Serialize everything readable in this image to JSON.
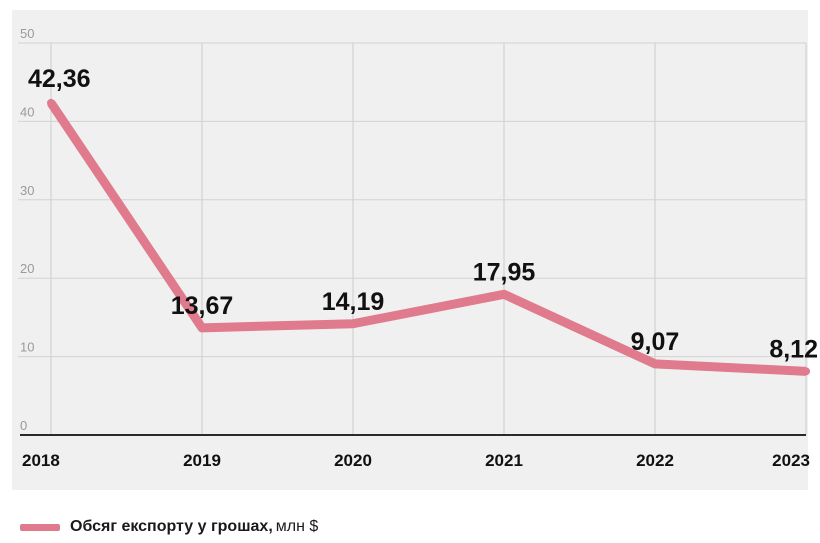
{
  "chart_data": {
    "type": "line",
    "x": [
      "2018",
      "2019",
      "2020",
      "2021",
      "2022",
      "2023"
    ],
    "series": [
      {
        "name": "Обсяг експорту у грошах",
        "values": [
          42.36,
          13.67,
          14.19,
          17.95,
          9.07,
          8.12
        ],
        "labels": [
          "42,36",
          "13,67",
          "14,19",
          "17,95",
          "9,07",
          "8,12"
        ]
      }
    ],
    "yticks": [
      "0",
      "10",
      "20",
      "30",
      "40",
      "50"
    ],
    "ylim": [
      0,
      50
    ],
    "grid": true,
    "legend_position": "bottom-left",
    "line_color": "#e07a8d",
    "panel_color": "#f0f0f0"
  },
  "legend": {
    "name": "Обсяг експорту у грошах,",
    "unit": "млн $"
  }
}
